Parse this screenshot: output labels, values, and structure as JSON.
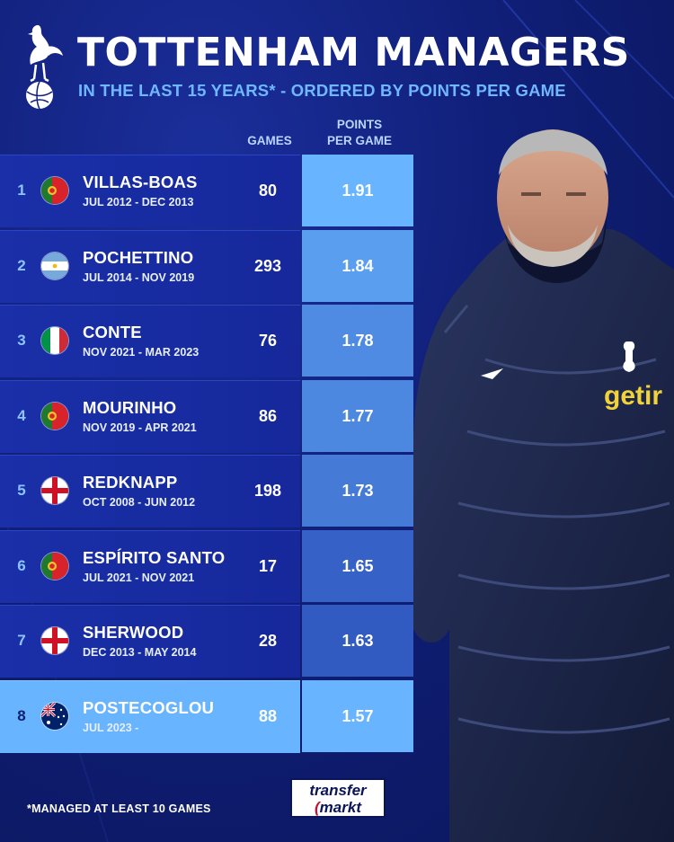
{
  "header": {
    "title": "TOTTENHAM MANAGERS",
    "subtitle": "IN THE LAST 15 YEARS* - ORDERED BY POINTS PER GAME"
  },
  "columns": {
    "games": "GAMES",
    "ppg_line1": "POINTS",
    "ppg_line2": "PER GAME"
  },
  "managers": [
    {
      "rank": "1",
      "name": "VILLAS-BOAS",
      "dates": "JUL 2012 - DEC 2013",
      "games": "80",
      "ppg": "1.91",
      "ppg_value": 1.91,
      "flag": "portugal-flag"
    },
    {
      "rank": "2",
      "name": "POCHETTINO",
      "dates": "JUL 2014 - NOV 2019",
      "games": "293",
      "ppg": "1.84",
      "ppg_value": 1.84,
      "flag": "argentina-flag"
    },
    {
      "rank": "3",
      "name": "CONTE",
      "dates": "NOV 2021 - MAR 2023",
      "games": "76",
      "ppg": "1.78",
      "ppg_value": 1.78,
      "flag": "italy-flag"
    },
    {
      "rank": "4",
      "name": "MOURINHO",
      "dates": "NOV 2019 - APR 2021",
      "games": "86",
      "ppg": "1.77",
      "ppg_value": 1.77,
      "flag": "portugal-flag"
    },
    {
      "rank": "5",
      "name": "REDKNAPP",
      "dates": "OCT 2008 - JUN 2012",
      "games": "198",
      "ppg": "1.73",
      "ppg_value": 1.73,
      "flag": "england-flag"
    },
    {
      "rank": "6",
      "name": "ESPÍRITO SANTO",
      "dates": "JUL 2021 - NOV 2021",
      "games": "17",
      "ppg": "1.65",
      "ppg_value": 1.65,
      "flag": "portugal-flag"
    },
    {
      "rank": "7",
      "name": "SHERWOOD",
      "dates": "DEC 2013 - MAY 2014",
      "games": "28",
      "ppg": "1.63",
      "ppg_value": 1.63,
      "flag": "england-flag"
    },
    {
      "rank": "8",
      "name": "POSTECOGLOU",
      "dates": "JUL 2023 -",
      "games": "88",
      "ppg": "1.57",
      "ppg_value": 1.57,
      "flag": "australia-flag",
      "highlight": true
    }
  ],
  "footnote": "*MANAGED AT LEAST 10 GAMES",
  "logo": {
    "line1": "transfer",
    "line2_accent": "(",
    "line2": "markt"
  },
  "photo": {
    "sponsor": "getir"
  },
  "colors": {
    "background": "#101f78",
    "accent_light": "#68b4ff",
    "subtitle": "#6fb7ff",
    "ppg_cell": "#3b6fe0"
  }
}
